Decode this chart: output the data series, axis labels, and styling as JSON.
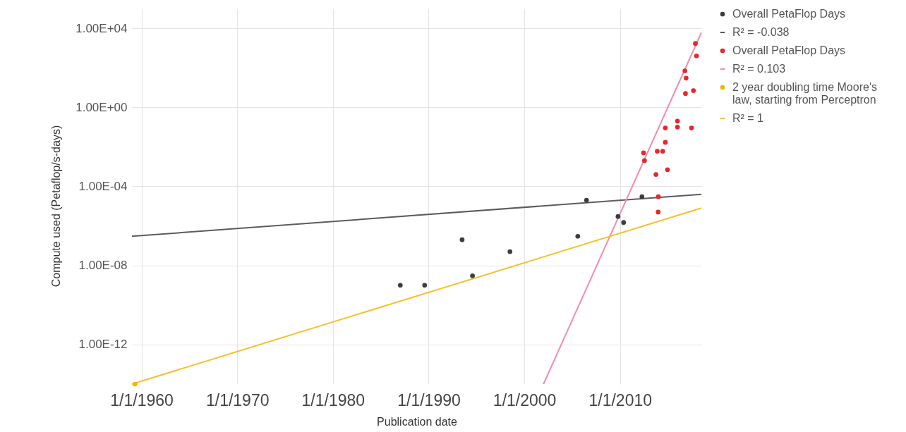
{
  "chart_data": {
    "type": "scatter",
    "xlabel": "Publication date",
    "ylabel": "Compute used (Petaflop/s-days)",
    "xlim": [
      "1959-01-01",
      "2018-07-01"
    ],
    "ylim": [
      1e-14,
      100000
    ],
    "xticks": [
      {
        "value": "1960-01-01",
        "label": "1/1/1960"
      },
      {
        "value": "1970-01-01",
        "label": "1/1/1970"
      },
      {
        "value": "1980-01-01",
        "label": "1/1/1980"
      },
      {
        "value": "1990-01-01",
        "label": "1/1/1990"
      },
      {
        "value": "2000-01-01",
        "label": "1/1/2000"
      },
      {
        "value": "2010-01-01",
        "label": "1/1/2010"
      }
    ],
    "yticks": [
      {
        "value": 1e-12,
        "label": "1.00E-12"
      },
      {
        "value": 1e-08,
        "label": "1.00E-08"
      },
      {
        "value": 0.0001,
        "label": "1.00E-04"
      },
      {
        "value": 1,
        "label": "1.00E+00"
      },
      {
        "value": 10000,
        "label": "1.00E+04"
      }
    ],
    "log": "y",
    "grid": true,
    "legend": "top right",
    "series": [
      {
        "name": "Overall PetaFlop Days",
        "type": "scatter",
        "color": "#3d3d3d",
        "x": [
          "1987-01-15",
          "1989-08-01",
          "1993-07-01",
          "1994-08-01",
          "1998-07-01",
          "2005-08-01",
          "2006-07-01",
          "2009-10-15",
          "2010-05-15",
          "2012-04-15"
        ],
        "values": [
          1e-09,
          1e-09,
          2e-07,
          3e-09,
          5e-08,
          3e-07,
          2e-05,
          3e-06,
          1.5e-06,
          3e-05
        ]
      },
      {
        "name": "R² = -0.038",
        "type": "line",
        "color": "#5c5c5c",
        "x": [
          "1959-01-01",
          "2018-07-01"
        ],
        "values": [
          3e-07,
          4e-05
        ]
      },
      {
        "name": "Overall PetaFlop Days",
        "type": "scatter",
        "color": "#e8262b",
        "x": [
          "2012-06-15",
          "2012-07-20",
          "2013-10-01",
          "2013-11-20",
          "2014-01-01",
          "2013-12-25",
          "2014-06-15",
          "2014-09-25",
          "2014-09-25",
          "2014-12-15",
          "2016-01-01",
          "2016-01-01",
          "2016-10-10",
          "2016-11-01",
          "2016-11-25",
          "2017-06-20",
          "2017-09-01",
          "2017-11-15",
          "2017-12-28"
        ],
        "values": [
          0.005,
          0.002,
          0.0004,
          0.006,
          3e-05,
          5e-06,
          0.006,
          0.09,
          0.017,
          0.0007,
          0.2,
          0.1,
          70,
          5,
          30,
          0.09,
          7,
          1700,
          400
        ]
      },
      {
        "name": "R² = 0.103",
        "type": "line",
        "color": "#f28cab",
        "x": [
          "2002-01-01",
          "2018-07-01"
        ],
        "values": [
          1e-14,
          6000
        ]
      },
      {
        "name": "2 year doubling time Moore's law, starting from Perceptron",
        "type": "scatter",
        "color": "#f4b400",
        "x": [
          "1959-05-01"
        ],
        "values": [
          1e-14
        ]
      },
      {
        "name": "R² = 1",
        "type": "line",
        "color": "#f6c02b",
        "x": [
          "1959-01-01",
          "2018-07-01"
        ],
        "values": [
          1e-14,
          8e-06
        ]
      }
    ]
  }
}
